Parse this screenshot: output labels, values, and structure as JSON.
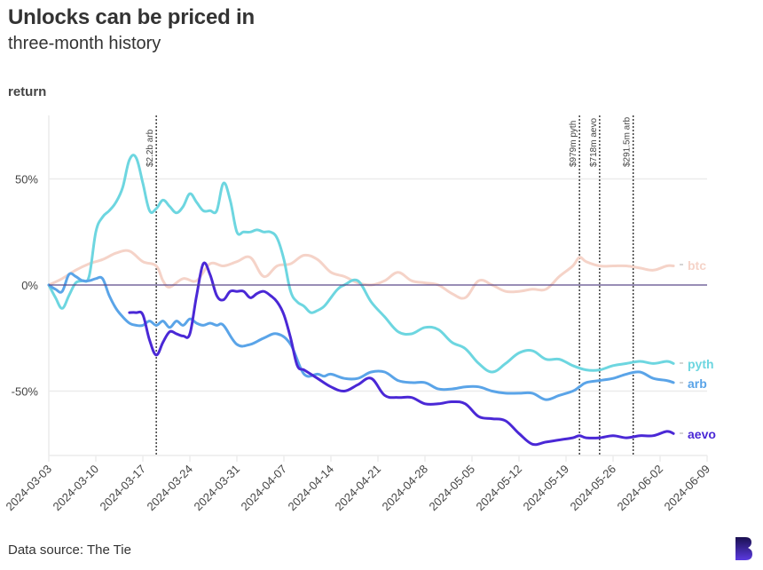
{
  "header": {
    "title": "Unlocks can be priced in",
    "subtitle": "three-month history",
    "y_axis_title": "return"
  },
  "footer": {
    "source": "Data source: The Tie",
    "logo_icon": "brand-b-logo-icon"
  },
  "colors": {
    "btc": "#f5d3c8",
    "pyth": "#6dd6e0",
    "arb": "#5aa4e8",
    "aevo": "#4a28d6",
    "zero_line": "#5a4a8a",
    "grid": "#ececec",
    "annotation": "#222222"
  },
  "chart_data": {
    "type": "line",
    "title": "Unlocks can be priced in",
    "subtitle": "three-month history",
    "xlabel": "",
    "ylabel": "return",
    "x_start_date": "2024-03-03",
    "x_unit": "days since 2024-03-03",
    "xlim": [
      0,
      98
    ],
    "ylim": [
      -82,
      80
    ],
    "y_ticks": [
      50,
      0,
      -50
    ],
    "y_tick_labels": [
      "50%",
      "0%",
      "-50%"
    ],
    "x_ticks": [
      0,
      7,
      14,
      21,
      28,
      35,
      42,
      49,
      56,
      63,
      70,
      77,
      84,
      91,
      98
    ],
    "x_tick_labels": [
      "2024-03-03",
      "2024-03-10",
      "2024-03-17",
      "2024-03-24",
      "2024-03-31",
      "2024-04-07",
      "2024-04-14",
      "2024-04-21",
      "2024-04-28",
      "2024-05-05",
      "2024-05-12",
      "2024-05-19",
      "2024-05-26",
      "2024-06-02",
      "2024-06-09"
    ],
    "grid": true,
    "legend": "right-end-labels",
    "annotations": [
      {
        "x": 16,
        "label": "$2.2b arb"
      },
      {
        "x": 79,
        "label": "$979m pyth"
      },
      {
        "x": 82,
        "label": "$718m aevo"
      },
      {
        "x": 87,
        "label": "$291.5m arb"
      }
    ],
    "series": [
      {
        "name": "btc",
        "x": [
          0,
          2,
          4,
          6,
          8,
          10,
          12,
          14,
          16,
          17,
          18,
          20,
          22,
          24,
          26,
          28,
          30,
          32,
          34,
          36,
          38,
          40,
          42,
          44,
          46,
          48,
          50,
          52,
          54,
          56,
          58,
          60,
          62,
          64,
          66,
          68,
          70,
          72,
          74,
          76,
          78,
          79,
          80,
          82,
          84,
          86,
          88,
          90,
          92,
          93
        ],
        "values": [
          0,
          3,
          7,
          10,
          12,
          15,
          16,
          11,
          9,
          2,
          -1,
          3,
          2,
          10,
          9,
          11,
          13,
          4,
          9,
          10,
          14,
          12,
          6,
          4,
          1,
          0,
          2,
          6,
          2,
          1,
          0,
          -4,
          -6,
          2,
          0,
          -3,
          -3,
          -2,
          -2,
          4,
          9,
          13,
          11,
          9,
          9,
          9,
          8,
          7,
          9,
          9
        ]
      },
      {
        "name": "pyth",
        "x": [
          0,
          1,
          2,
          3,
          4,
          5,
          6,
          7,
          8,
          9,
          10,
          11,
          12,
          13,
          14,
          15,
          16,
          17,
          18,
          19,
          20,
          21,
          22,
          23,
          24,
          25,
          26,
          27,
          28,
          29,
          30,
          31,
          32,
          33,
          34,
          35,
          36,
          37,
          38,
          39,
          40,
          41,
          42,
          43,
          44,
          46,
          48,
          50,
          52,
          54,
          56,
          58,
          60,
          62,
          64,
          66,
          68,
          70,
          72,
          74,
          76,
          78,
          80,
          82,
          84,
          86,
          88,
          90,
          92,
          93
        ],
        "values": [
          0,
          -6,
          -11,
          -5,
          1,
          2,
          4,
          25,
          32,
          35,
          39,
          46,
          59,
          60,
          48,
          35,
          36,
          40,
          37,
          34,
          37,
          43,
          39,
          35,
          35,
          35,
          48,
          40,
          25,
          25,
          25,
          26,
          25,
          25,
          22,
          12,
          -3,
          -8,
          -10,
          -13,
          -12,
          -10,
          -6,
          -2,
          0,
          2,
          -8,
          -15,
          -22,
          -23,
          -20,
          -21,
          -27,
          -30,
          -37,
          -41,
          -37,
          -32,
          -31,
          -35,
          -35,
          -38,
          -40,
          -40,
          -38,
          -37,
          -36,
          -37,
          -36,
          -37
        ]
      },
      {
        "name": "arb",
        "x": [
          0,
          1,
          2,
          3,
          4,
          5,
          6,
          7,
          8,
          9,
          10,
          11,
          12,
          13,
          14,
          15,
          16,
          17,
          18,
          19,
          20,
          21,
          22,
          23,
          24,
          25,
          26,
          28,
          30,
          32,
          34,
          36,
          38,
          40,
          41,
          42,
          44,
          46,
          48,
          50,
          52,
          54,
          56,
          58,
          60,
          62,
          64,
          66,
          68,
          70,
          72,
          74,
          76,
          78,
          79,
          80,
          82,
          84,
          86,
          88,
          90,
          92,
          93
        ],
        "values": [
          0,
          -2,
          -3,
          5,
          4,
          2,
          2,
          3,
          3,
          -5,
          -11,
          -15,
          -18,
          -19,
          -19,
          -17,
          -19,
          -17,
          -20,
          -17,
          -19,
          -16,
          -18,
          -19,
          -18,
          -19,
          -19,
          -28,
          -28,
          -25,
          -23,
          -28,
          -42,
          -42,
          -43,
          -42,
          -44,
          -44,
          -41,
          -41,
          -45,
          -46,
          -46,
          -49,
          -49,
          -48,
          -48,
          -50,
          -51,
          -51,
          -51,
          -54,
          -52,
          -50,
          -48,
          -46,
          -45,
          -44,
          -42,
          -41,
          -44,
          -45,
          -46
        ]
      },
      {
        "name": "aevo",
        "x": [
          12,
          13,
          14,
          15,
          16,
          17,
          18,
          19,
          20,
          21,
          22,
          23,
          24,
          25,
          26,
          27,
          28,
          29,
          30,
          31,
          32,
          33,
          34,
          35,
          36,
          37,
          38,
          39,
          40,
          42,
          44,
          46,
          48,
          50,
          52,
          54,
          56,
          58,
          60,
          62,
          64,
          66,
          68,
          70,
          72,
          74,
          76,
          78,
          79,
          80,
          82,
          84,
          86,
          88,
          90,
          92,
          93
        ],
        "values": [
          -13,
          -13,
          -14,
          -26,
          -33,
          -27,
          -22,
          -23,
          -24,
          -23,
          -5,
          10,
          5,
          -5,
          -7,
          -3,
          -3,
          -3,
          -6,
          -4,
          -3,
          -5,
          -8,
          -14,
          -25,
          -38,
          -40,
          -42,
          -44,
          -48,
          -50,
          -47,
          -44,
          -52,
          -53,
          -53,
          -56,
          -56,
          -55,
          -56,
          -62,
          -63,
          -64,
          -70,
          -75,
          -74,
          -73,
          -72,
          -71,
          -72,
          -72,
          -71,
          -72,
          -71,
          -71,
          -69,
          -70
        ]
      }
    ]
  }
}
